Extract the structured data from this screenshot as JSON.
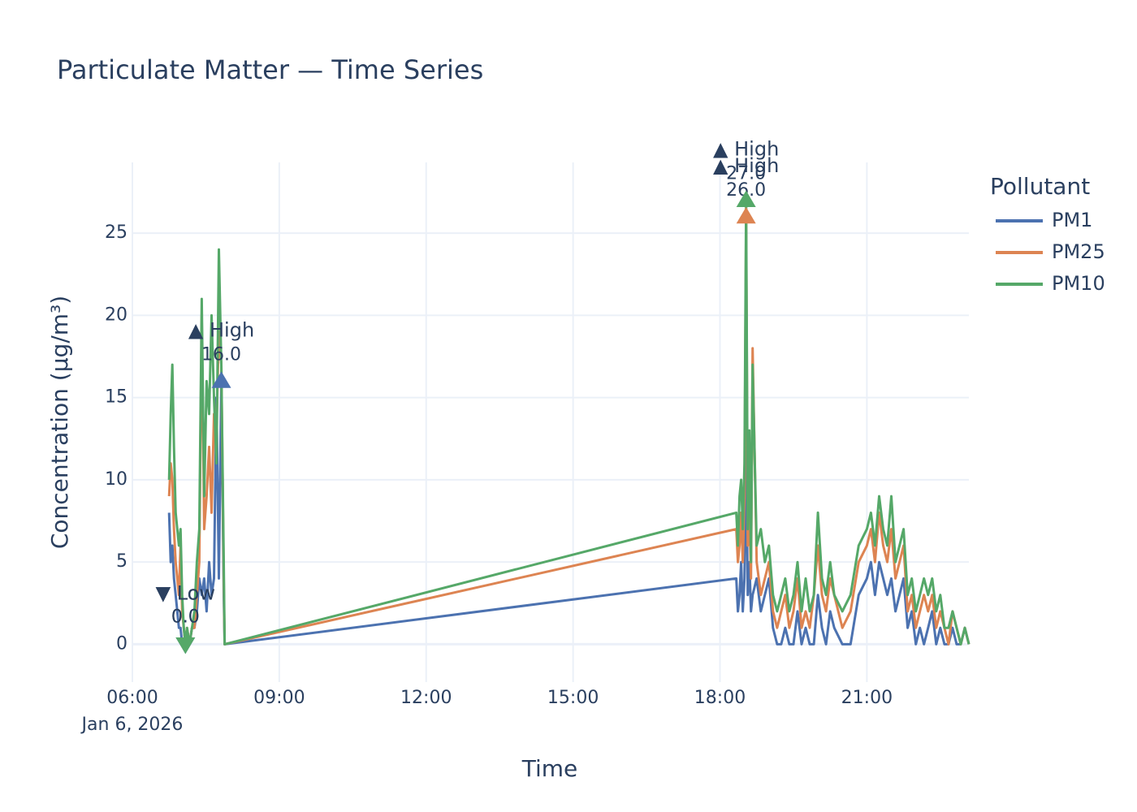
{
  "chart_data": {
    "type": "line",
    "title": "Particulate Matter — Time Series",
    "x_label": "Time",
    "y_label": "Concentration (µg/m³)",
    "x_date_label": "Jan 6, 2026",
    "legend_title": "Pollutant",
    "legend_position": "right",
    "grid": true,
    "xlim": [
      "2026-01-06 06:00",
      "2026-01-06 23:05"
    ],
    "xticks": [
      {
        "value": "2026-01-06 06:00",
        "label": "06:00"
      },
      {
        "value": "2026-01-06 09:00",
        "label": "09:00"
      },
      {
        "value": "2026-01-06 12:00",
        "label": "12:00"
      },
      {
        "value": "2026-01-06 15:00",
        "label": "15:00"
      },
      {
        "value": "2026-01-06 18:00",
        "label": "18:00"
      },
      {
        "value": "2026-01-06 21:00",
        "label": "21:00"
      }
    ],
    "ylim": [
      -2.3,
      29.3
    ],
    "yticks": [
      0,
      5,
      10,
      15,
      20,
      25
    ],
    "x": [
      "2026-01-06 06:45",
      "2026-01-06 06:47",
      "2026-01-06 06:49",
      "2026-01-06 06:51",
      "2026-01-06 06:53",
      "2026-01-06 06:55",
      "2026-01-06 06:57",
      "2026-01-06 06:59",
      "2026-01-06 07:01",
      "2026-01-06 07:03",
      "2026-01-06 07:05",
      "2026-01-06 07:07",
      "2026-01-06 07:10",
      "2026-01-06 07:13",
      "2026-01-06 07:16",
      "2026-01-06 07:19",
      "2026-01-06 07:22",
      "2026-01-06 07:25",
      "2026-01-06 07:28",
      "2026-01-06 07:31",
      "2026-01-06 07:34",
      "2026-01-06 07:37",
      "2026-01-06 07:40",
      "2026-01-06 07:43",
      "2026-01-06 07:46",
      "2026-01-06 07:49",
      "2026-01-06 07:52",
      "2026-01-06 07:53",
      "2026-01-06 18:20",
      "2026-01-06 18:22",
      "2026-01-06 18:24",
      "2026-01-06 18:26",
      "2026-01-06 18:28",
      "2026-01-06 18:30",
      "2026-01-06 18:32",
      "2026-01-06 18:34",
      "2026-01-06 18:36",
      "2026-01-06 18:38",
      "2026-01-06 18:40",
      "2026-01-06 18:45",
      "2026-01-06 18:50",
      "2026-01-06 18:55",
      "2026-01-06 19:00",
      "2026-01-06 19:05",
      "2026-01-06 19:10",
      "2026-01-06 19:15",
      "2026-01-06 19:20",
      "2026-01-06 19:25",
      "2026-01-06 19:30",
      "2026-01-06 19:35",
      "2026-01-06 19:40",
      "2026-01-06 19:45",
      "2026-01-06 19:50",
      "2026-01-06 19:55",
      "2026-01-06 20:00",
      "2026-01-06 20:05",
      "2026-01-06 20:10",
      "2026-01-06 20:15",
      "2026-01-06 20:20",
      "2026-01-06 20:30",
      "2026-01-06 20:40",
      "2026-01-06 20:50",
      "2026-01-06 21:00",
      "2026-01-06 21:05",
      "2026-01-06 21:10",
      "2026-01-06 21:15",
      "2026-01-06 21:20",
      "2026-01-06 21:25",
      "2026-01-06 21:30",
      "2026-01-06 21:35",
      "2026-01-06 21:40",
      "2026-01-06 21:45",
      "2026-01-06 21:50",
      "2026-01-06 21:55",
      "2026-01-06 22:00",
      "2026-01-06 22:05",
      "2026-01-06 22:10",
      "2026-01-06 22:15",
      "2026-01-06 22:20",
      "2026-01-06 22:25",
      "2026-01-06 22:30",
      "2026-01-06 22:35",
      "2026-01-06 22:40",
      "2026-01-06 22:45",
      "2026-01-06 22:50",
      "2026-01-06 22:55",
      "2026-01-06 23:00",
      "2026-01-06 23:05"
    ],
    "series": [
      {
        "name": "PM1",
        "color": "#4c72b0",
        "values": [
          8,
          5,
          6,
          4,
          3,
          2,
          1,
          1,
          0,
          0,
          0,
          0,
          0,
          1,
          1,
          2,
          4,
          3,
          4,
          2,
          5,
          3,
          4,
          15,
          4,
          16,
          3,
          0,
          4,
          2,
          3,
          5,
          2,
          4,
          12,
          3,
          5,
          2,
          3,
          4,
          2,
          3,
          4,
          1,
          0,
          0,
          1,
          0,
          0,
          2,
          0,
          1,
          0,
          0,
          3,
          1,
          0,
          2,
          1,
          0,
          0,
          3,
          4,
          5,
          3,
          5,
          4,
          3,
          4,
          2,
          3,
          4,
          1,
          2,
          0,
          1,
          0,
          1,
          2,
          0,
          1,
          0,
          0,
          1,
          0,
          0,
          1,
          0
        ]
      },
      {
        "name": "PM25",
        "color": "#dd8452",
        "values": [
          9,
          11,
          10,
          7,
          5,
          4,
          3,
          6,
          2,
          1,
          0,
          1,
          0,
          1,
          1,
          3,
          5,
          20,
          7,
          9,
          12,
          8,
          14,
          13,
          19,
          17,
          4,
          0,
          7,
          5,
          6,
          8,
          5,
          9,
          26,
          6,
          8,
          4,
          18,
          5,
          3,
          4,
          5,
          2,
          1,
          2,
          3,
          1,
          2,
          4,
          1,
          2,
          1,
          3,
          6,
          3,
          2,
          4,
          3,
          1,
          2,
          5,
          6,
          7,
          5,
          8,
          6,
          5,
          7,
          4,
          5,
          6,
          2,
          3,
          1,
          2,
          3,
          2,
          3,
          1,
          2,
          1,
          0,
          2,
          1,
          0,
          1,
          0
        ]
      },
      {
        "name": "PM10",
        "color": "#55a868",
        "values": [
          10,
          14,
          17,
          12,
          8,
          7,
          6,
          7,
          3,
          1,
          0,
          1,
          0,
          1,
          2,
          5,
          7,
          21,
          9,
          16,
          14,
          20,
          15,
          11,
          24,
          17,
          5,
          0,
          8,
          6,
          9,
          10,
          7,
          11,
          27,
          7,
          13,
          5,
          17,
          6,
          7,
          5,
          6,
          3,
          2,
          3,
          4,
          2,
          3,
          5,
          2,
          4,
          2,
          3,
          8,
          4,
          3,
          5,
          3,
          2,
          3,
          6,
          7,
          8,
          6,
          9,
          7,
          6,
          9,
          5,
          6,
          7,
          3,
          4,
          2,
          3,
          4,
          3,
          4,
          2,
          3,
          1,
          1,
          2,
          1,
          0,
          1,
          0
        ]
      }
    ],
    "markers": [
      {
        "series": "PM1",
        "color": "#4c72b0",
        "symbol": "up",
        "x": "2026-01-06 07:49",
        "y": 16,
        "value_label": "16.0",
        "tag": "▲ High"
      },
      {
        "series": "PM1",
        "color": "#4c72b0",
        "symbol": "down",
        "x": "2026-01-06 07:05",
        "y": 0,
        "value_label": "0.0",
        "tag": "▼ Low"
      },
      {
        "series": "PM10",
        "color": "#55a868",
        "symbol": "down",
        "x": "2026-01-06 07:05",
        "y": 0,
        "value_label": "0.0",
        "tag": "▼ Low"
      },
      {
        "series": "PM25",
        "color": "#dd8452",
        "symbol": "up",
        "x": "2026-01-06 18:32",
        "y": 26,
        "value_label": "26.0",
        "tag": "▲ High"
      },
      {
        "series": "PM10",
        "color": "#55a868",
        "symbol": "up",
        "x": "2026-01-06 18:32",
        "y": 27,
        "value_label": "27.0",
        "tag": "▲ High"
      }
    ]
  }
}
